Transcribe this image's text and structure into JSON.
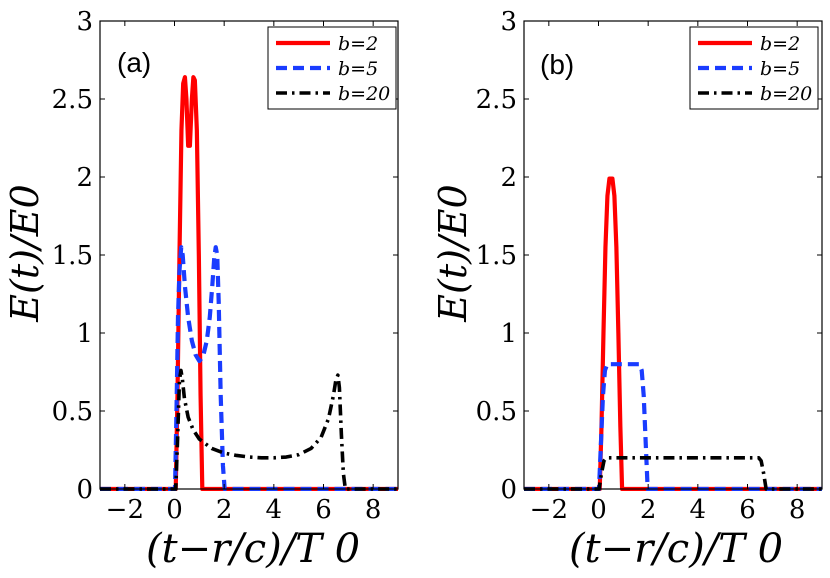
{
  "chart_data": [
    {
      "type": "line",
      "panel_label": "(a)",
      "xlabel": "(t−r/c)/T 0",
      "ylabel": "E(t)/E0",
      "xlim": [
        -3,
        9
      ],
      "ylim": [
        0,
        3
      ],
      "xticks": [
        "−2",
        "0",
        "2",
        "4",
        "6",
        "8"
      ],
      "xtick_values": [
        -2,
        0,
        2,
        4,
        6,
        8
      ],
      "yticks": [
        "0",
        "0.5",
        "1",
        "1.5",
        "2",
        "2.5",
        "3"
      ],
      "ytick_values": [
        0,
        0.5,
        1,
        1.5,
        2,
        2.5,
        3
      ],
      "legend_position": "top-right",
      "series": [
        {
          "name": "b=2",
          "color": "#ff0000",
          "style": "solid",
          "points": [
            [
              -3,
              0
            ],
            [
              0.05,
              0
            ],
            [
              0.12,
              0.6
            ],
            [
              0.2,
              1.5
            ],
            [
              0.28,
              2.3
            ],
            [
              0.35,
              2.6
            ],
            [
              0.42,
              2.64
            ],
            [
              0.48,
              2.5
            ],
            [
              0.55,
              2.2
            ],
            [
              0.62,
              2.2
            ],
            [
              0.7,
              2.5
            ],
            [
              0.76,
              2.64
            ],
            [
              0.82,
              2.62
            ],
            [
              0.9,
              2.3
            ],
            [
              0.98,
              1.5
            ],
            [
              1.05,
              0.6
            ],
            [
              1.12,
              0
            ],
            [
              9,
              0
            ]
          ]
        },
        {
          "name": "b=5",
          "color": "#1a3cff",
          "style": "dashed",
          "points": [
            [
              -3,
              0
            ],
            [
              0.02,
              0
            ],
            [
              0.08,
              0.5
            ],
            [
              0.14,
              1.1
            ],
            [
              0.2,
              1.4
            ],
            [
              0.27,
              1.55
            ],
            [
              0.33,
              1.5
            ],
            [
              0.42,
              1.3
            ],
            [
              0.55,
              1.1
            ],
            [
              0.7,
              0.95
            ],
            [
              0.85,
              0.86
            ],
            [
              1.0,
              0.82
            ],
            [
              1.15,
              0.85
            ],
            [
              1.3,
              0.95
            ],
            [
              1.42,
              1.1
            ],
            [
              1.52,
              1.3
            ],
            [
              1.6,
              1.48
            ],
            [
              1.66,
              1.55
            ],
            [
              1.72,
              1.5
            ],
            [
              1.78,
              1.2
            ],
            [
              1.86,
              0.6
            ],
            [
              1.95,
              0.15
            ],
            [
              2.02,
              0
            ],
            [
              9,
              0
            ]
          ]
        },
        {
          "name": "b=20",
          "color": "#000000",
          "style": "dashdot",
          "points": [
            [
              -3,
              0
            ],
            [
              0.05,
              0
            ],
            [
              0.12,
              0.3
            ],
            [
              0.2,
              0.7
            ],
            [
              0.26,
              0.76
            ],
            [
              0.32,
              0.7
            ],
            [
              0.4,
              0.58
            ],
            [
              0.55,
              0.46
            ],
            [
              0.75,
              0.38
            ],
            [
              1.0,
              0.32
            ],
            [
              1.5,
              0.26
            ],
            [
              2.0,
              0.23
            ],
            [
              2.5,
              0.215
            ],
            [
              3.0,
              0.205
            ],
            [
              3.5,
              0.2
            ],
            [
              4.0,
              0.2
            ],
            [
              4.5,
              0.205
            ],
            [
              5.0,
              0.22
            ],
            [
              5.5,
              0.26
            ],
            [
              5.9,
              0.33
            ],
            [
              6.2,
              0.45
            ],
            [
              6.4,
              0.6
            ],
            [
              6.5,
              0.7
            ],
            [
              6.58,
              0.73
            ],
            [
              6.64,
              0.65
            ],
            [
              6.72,
              0.35
            ],
            [
              6.8,
              0.1
            ],
            [
              6.88,
              0
            ],
            [
              9,
              0
            ]
          ]
        }
      ]
    },
    {
      "type": "line",
      "panel_label": "(b)",
      "xlabel": "(t−r/c)/T 0",
      "ylabel": "E(t)/E0",
      "xlim": [
        -3,
        9
      ],
      "ylim": [
        0,
        3
      ],
      "xticks": [
        "−2",
        "0",
        "2",
        "4",
        "6",
        "8"
      ],
      "xtick_values": [
        -2,
        0,
        2,
        4,
        6,
        8
      ],
      "yticks": [
        "0",
        "0.5",
        "1",
        "1.5",
        "2",
        "2.5",
        "3"
      ],
      "ytick_values": [
        0,
        0.5,
        1,
        1.5,
        2,
        2.5,
        3
      ],
      "legend_position": "top-right",
      "series": [
        {
          "name": "b=2",
          "color": "#ff0000",
          "style": "solid",
          "points": [
            [
              -3,
              0
            ],
            [
              0.05,
              0
            ],
            [
              0.12,
              0.4
            ],
            [
              0.2,
              1.0
            ],
            [
              0.28,
              1.55
            ],
            [
              0.36,
              1.88
            ],
            [
              0.44,
              1.99
            ],
            [
              0.56,
              1.99
            ],
            [
              0.64,
              1.88
            ],
            [
              0.72,
              1.55
            ],
            [
              0.8,
              1.0
            ],
            [
              0.88,
              0.4
            ],
            [
              0.95,
              0
            ],
            [
              9,
              0
            ]
          ]
        },
        {
          "name": "b=5",
          "color": "#1a3cff",
          "style": "dashed",
          "points": [
            [
              -3,
              0
            ],
            [
              0.02,
              0
            ],
            [
              0.1,
              0.3
            ],
            [
              0.18,
              0.6
            ],
            [
              0.26,
              0.76
            ],
            [
              0.35,
              0.8
            ],
            [
              1.65,
              0.8
            ],
            [
              1.74,
              0.76
            ],
            [
              1.82,
              0.6
            ],
            [
              1.9,
              0.3
            ],
            [
              1.98,
              0
            ],
            [
              9,
              0
            ]
          ]
        },
        {
          "name": "b=20",
          "color": "#000000",
          "style": "dashdot",
          "points": [
            [
              -3,
              0
            ],
            [
              0.02,
              0
            ],
            [
              0.12,
              0.1
            ],
            [
              0.22,
              0.18
            ],
            [
              0.32,
              0.2
            ],
            [
              6.45,
              0.2
            ],
            [
              6.55,
              0.18
            ],
            [
              6.65,
              0.1
            ],
            [
              6.75,
              0
            ],
            [
              9,
              0
            ]
          ]
        }
      ]
    }
  ]
}
